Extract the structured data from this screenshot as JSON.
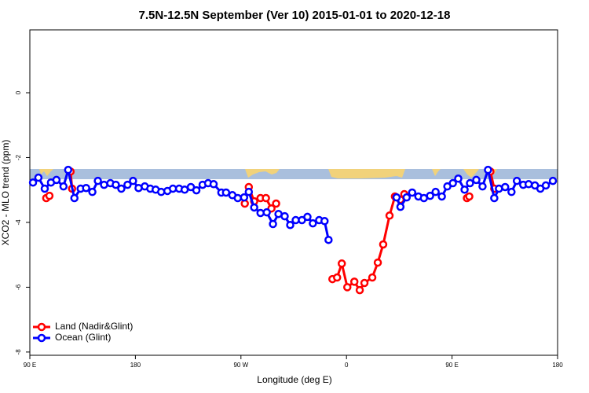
{
  "chart_data": {
    "type": "line",
    "title": "7.5N-12.5N September (Ver 10)   2015-01-01 to 2020-12-18",
    "xlabel": "Longitude (deg E)",
    "ylabel": "XCO2 - MLO trend (ppm)",
    "xlim": [
      90,
      540
    ],
    "ylim": [
      -8.1,
      1.94
    ],
    "xticks": [
      {
        "value": 90,
        "label": "90 E"
      },
      {
        "value": 180,
        "label": "180"
      },
      {
        "value": 270,
        "label": "90 W"
      },
      {
        "value": 360,
        "label": "0"
      },
      {
        "value": 450,
        "label": "90 E"
      },
      {
        "value": 540,
        "label": "180"
      }
    ],
    "yticks": [
      0,
      -2,
      -4,
      -6,
      -8
    ],
    "legend": "bottomleft",
    "series": [
      {
        "name": "Land (Nadir&Glint)",
        "color": "#ff0000",
        "x": [
          104,
          106.7,
          110,
          124.7,
          126,
          200,
          273.3,
          276.7,
          281.3,
          286.7,
          291.3,
          296,
          300,
          320,
          348,
          352,
          356,
          360.7,
          366.7,
          371.3,
          375.3,
          382,
          386.7,
          391.3,
          396.7,
          401.3,
          406,
          409.3,
          440,
          462.7,
          464.7,
          470,
          482.7,
          486
        ],
        "values": [
          -3.25,
          -3.18,
          null,
          -2.43,
          -2.96,
          null,
          -3.42,
          -2.91,
          -3.35,
          -3.25,
          -3.25,
          -3.57,
          -3.42,
          null,
          -5.75,
          -5.7,
          -5.27,
          -6.0,
          -5.83,
          -6.09,
          -5.87,
          -5.7,
          -5.24,
          -4.68,
          -3.79,
          -3.2,
          -3.3,
          -3.13,
          null,
          -3.25,
          -3.2,
          null,
          -2.43,
          -2.96
        ]
      },
      {
        "name": "Ocean (Glint)",
        "color": "#0000ff",
        "x": [
          92.7,
          97.3,
          102.7,
          108,
          112.7,
          118.7,
          122.7,
          128,
          133.3,
          138,
          143.3,
          148,
          153.3,
          158.7,
          163.3,
          168,
          173.3,
          178,
          182.7,
          188,
          192.7,
          197.3,
          202,
          207.3,
          212,
          217.3,
          222,
          227.3,
          232,
          237.3,
          242,
          246.7,
          253.3,
          257.3,
          262.7,
          267.3,
          272.7,
          276.7,
          281.3,
          286.7,
          292,
          297.3,
          302,
          307.3,
          312,
          316.7,
          322,
          326.7,
          331.3,
          336.7,
          341.3,
          344.7,
          380,
          402.7,
          406,
          411.3,
          416,
          421.3,
          426,
          431.3,
          436,
          441.3,
          446,
          450.7,
          455.3,
          460.7,
          465.3,
          470.7,
          476,
          480.7,
          486,
          490,
          495.3,
          500.7,
          505.3,
          510.7,
          515.3,
          520.7,
          525.3,
          530,
          536
        ],
        "values": [
          -2.77,
          -2.62,
          -2.96,
          -2.77,
          -2.69,
          -2.89,
          -2.38,
          -3.25,
          -2.96,
          -2.94,
          -3.06,
          -2.72,
          -2.84,
          -2.79,
          -2.84,
          -2.96,
          -2.84,
          -2.72,
          -2.94,
          -2.89,
          -2.96,
          -2.99,
          -3.06,
          -3.03,
          -2.96,
          -2.96,
          -2.99,
          -2.91,
          -3.01,
          -2.84,
          -2.79,
          -2.82,
          -3.08,
          -3.08,
          -3.16,
          -3.25,
          -3.23,
          -3.06,
          -3.54,
          -3.71,
          -3.69,
          -4.05,
          -3.74,
          -3.81,
          -4.08,
          -3.93,
          -3.93,
          -3.83,
          -4.03,
          -3.93,
          -3.96,
          -4.54,
          null,
          -3.23,
          -3.52,
          -3.23,
          -3.08,
          -3.2,
          -3.25,
          -3.18,
          -3.06,
          -3.2,
          -2.89,
          -2.79,
          -2.65,
          -2.99,
          -2.79,
          -2.69,
          -2.89,
          -2.38,
          -3.25,
          -2.96,
          -2.91,
          -3.06,
          -2.72,
          -2.84,
          -2.82,
          -2.86,
          -2.96,
          -2.86,
          -2.72
        ]
      }
    ]
  }
}
